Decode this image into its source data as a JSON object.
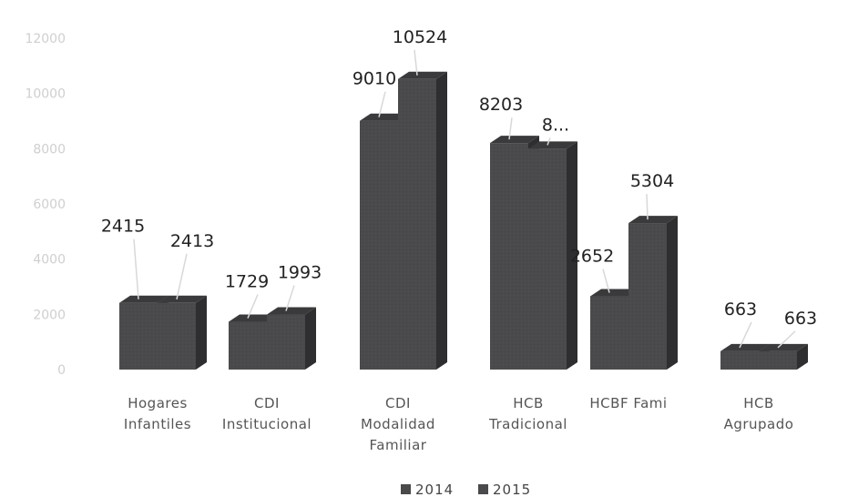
{
  "chart_data": {
    "type": "bar",
    "categories": [
      [
        "Hogares",
        "Infantiles"
      ],
      [
        "CDI",
        "Institucional"
      ],
      [
        "CDI",
        "Modalidad",
        "Familiar"
      ],
      [
        "HCB",
        "Tradicional"
      ],
      [
        "HCBF Fami"
      ],
      [
        "HCB",
        "Agrupado"
      ]
    ],
    "series": [
      {
        "name": "2014",
        "values": [
          2415,
          1729,
          9010,
          8203,
          2652,
          663
        ],
        "labels": [
          "2415",
          "1729",
          "9010",
          "8203",
          "2652",
          "663"
        ]
      },
      {
        "name": "2015",
        "values": [
          2413,
          1993,
          10524,
          8000,
          5304,
          663
        ],
        "labels": [
          "2413",
          "1993",
          "10524",
          "8...",
          "5304",
          "663"
        ]
      }
    ],
    "ylim": [
      0,
      12000
    ],
    "yticks": [
      "0",
      "2000",
      "4000",
      "6000",
      "8000",
      "10000",
      "12000"
    ],
    "legend_position": "bottom",
    "colors": {
      "bar_front": "#4a4a4c",
      "bar_side": "#2e2e30",
      "bar_top": "#3a3a3c"
    }
  }
}
